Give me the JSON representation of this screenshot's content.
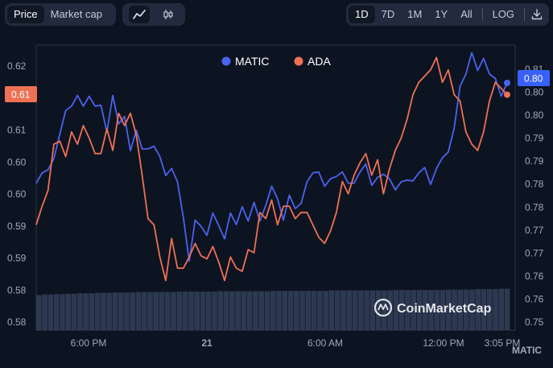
{
  "toolbar": {
    "metric_tabs": [
      {
        "label": "Price",
        "active": true
      },
      {
        "label": "Market cap",
        "active": false
      }
    ],
    "chart_style_icons": [
      {
        "icon": "line-chart-icon",
        "active": true
      },
      {
        "icon": "candlestick-icon",
        "active": false
      }
    ],
    "ranges": [
      {
        "label": "1D",
        "active": true
      },
      {
        "label": "7D",
        "active": false
      },
      {
        "label": "1M",
        "active": false
      },
      {
        "label": "1Y",
        "active": false
      },
      {
        "label": "All",
        "active": false
      }
    ],
    "log_label": "LOG",
    "download_icon": "download-icon"
  },
  "colors": {
    "matic": "#4a63ee",
    "ada": "#ee7154",
    "background": "#0d1421",
    "badge_left": "#ee7154",
    "badge_right": "#3861fb"
  },
  "watermark": "CoinMarketCap",
  "right_axis_label": "MATIC",
  "chart_data": {
    "type": "line",
    "legend": [
      "MATIC",
      "ADA"
    ],
    "x_ticks": [
      "6:00 PM",
      "21",
      "6:00 AM",
      "12:00 PM",
      "3:05 PM"
    ],
    "left_axis_ticks": [
      "0.62",
      "0.61",
      "0.61",
      "0.60",
      "0.60",
      "0.59",
      "0.59",
      "0.58",
      "0.58"
    ],
    "right_axis_ticks": [
      "0.81",
      "0.80",
      "0.80",
      "0.79",
      "0.79",
      "0.78",
      "0.78",
      "0.77",
      "0.77",
      "0.76",
      "0.76",
      "0.75"
    ],
    "left_ylim": [
      0.576,
      0.622
    ],
    "right_ylim": [
      0.7475,
      0.8115
    ],
    "current_left_label": "0.61",
    "current_right_label": "0.80",
    "series": [
      {
        "name": "MATIC",
        "axis": "right",
        "values": [
          0.7805,
          0.7828,
          0.7835,
          0.786,
          0.7915,
          0.7968,
          0.7978,
          0.8002,
          0.7978,
          0.8,
          0.7978,
          0.798,
          0.792,
          0.8002,
          0.7938,
          0.7955,
          0.7878,
          0.7924,
          0.7882,
          0.7882,
          0.7888,
          0.7865,
          0.7822,
          0.7838,
          0.7808,
          0.7728,
          0.763,
          0.7722,
          0.7708,
          0.7688,
          0.7738,
          0.771,
          0.768,
          0.7738,
          0.7712,
          0.7752,
          0.772,
          0.7762,
          0.772,
          0.7755,
          0.7798,
          0.777,
          0.7722,
          0.7778,
          0.7748,
          0.776,
          0.7808,
          0.7828,
          0.783,
          0.7798,
          0.7815,
          0.782,
          0.783,
          0.7805,
          0.7805,
          0.783,
          0.7848,
          0.78,
          0.7818,
          0.7825,
          0.7815,
          0.779,
          0.7808,
          0.7812,
          0.781,
          0.7828,
          0.784,
          0.7802,
          0.7838,
          0.7862,
          0.7875,
          0.7928,
          0.8022,
          0.805,
          0.8098,
          0.8058,
          0.8085,
          0.805,
          0.804,
          0.8,
          0.803
        ]
      },
      {
        "name": "ADA",
        "axis": "left",
        "values": [
          0.593,
          0.596,
          0.5985,
          0.606,
          0.6065,
          0.604,
          0.608,
          0.606,
          0.609,
          0.607,
          0.6045,
          0.6045,
          0.6085,
          0.605,
          0.611,
          0.609,
          0.611,
          0.6075,
          0.601,
          0.594,
          0.593,
          0.5878,
          0.584,
          0.5908,
          0.586,
          0.586,
          0.5878,
          0.59,
          0.588,
          0.5875,
          0.5895,
          0.587,
          0.584,
          0.5878,
          0.586,
          0.5855,
          0.589,
          0.5885,
          0.595,
          0.594,
          0.597,
          0.593,
          0.596,
          0.596,
          0.594,
          0.595,
          0.595,
          0.593,
          0.591,
          0.59,
          0.592,
          0.595,
          0.6,
          0.598,
          0.601,
          0.603,
          0.6045,
          0.601,
          0.6035,
          0.598,
          0.602,
          0.605,
          0.607,
          0.61,
          0.614,
          0.616,
          0.617,
          0.618,
          0.62,
          0.616,
          0.618,
          0.614,
          0.613,
          0.608,
          0.606,
          0.605,
          0.608,
          0.613,
          0.616,
          0.615,
          0.614
        ]
      }
    ],
    "volume": "relative bar heights",
    "volume_values": [
      0.84,
      0.85,
      0.85,
      0.86,
      0.86,
      0.87,
      0.87,
      0.88,
      0.88,
      0.88,
      0.89,
      0.89,
      0.89,
      0.9,
      0.9,
      0.9,
      0.9,
      0.91,
      0.91,
      0.91,
      0.91,
      0.91,
      0.91,
      0.91,
      0.92,
      0.92,
      0.92,
      0.92,
      0.92,
      0.92,
      0.92,
      0.93,
      0.93,
      0.93,
      0.93,
      0.93,
      0.93,
      0.93,
      0.93,
      0.93,
      0.94,
      0.94,
      0.94,
      0.94,
      0.94,
      0.94,
      0.94,
      0.94,
      0.94,
      0.94,
      0.95,
      0.95,
      0.95,
      0.95,
      0.95,
      0.95,
      0.95,
      0.95,
      0.95,
      0.95,
      0.95,
      0.96,
      0.96,
      0.96,
      0.96,
      0.96,
      0.96,
      0.96,
      0.96,
      0.96,
      0.97,
      0.97,
      0.97,
      0.97,
      0.97,
      0.98,
      0.98,
      0.98,
      0.98,
      0.99,
      0.99
    ]
  }
}
